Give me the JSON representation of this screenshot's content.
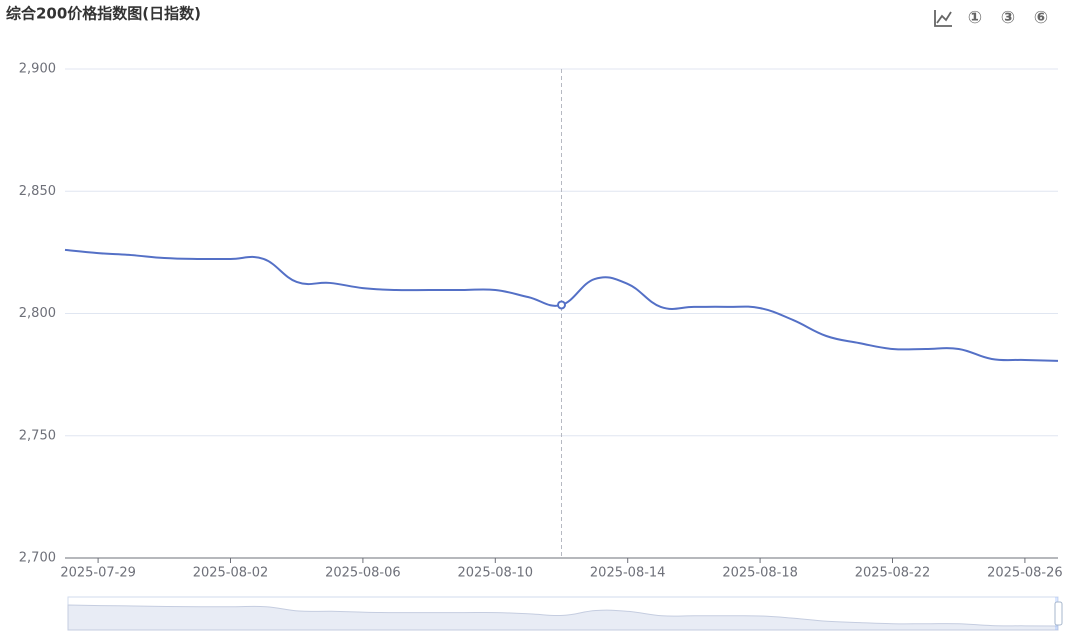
{
  "chart_data": {
    "type": "line",
    "title": "综合200价格指数图(日指数)",
    "toolbar": [
      "①",
      "③",
      "⑥"
    ],
    "categories": [
      null,
      "2025-07-29",
      null,
      null,
      null,
      "2025-08-02",
      null,
      null,
      null,
      "2025-08-06",
      null,
      null,
      null,
      "2025-08-10",
      null,
      null,
      null,
      "2025-08-14",
      null,
      null,
      null,
      "2025-08-18",
      null,
      null,
      null,
      "2025-08-22",
      null,
      null,
      null,
      "2025-08-26",
      null
    ],
    "series": [
      {
        "name": "综合200价格指数",
        "color": "#5470c6",
        "values": [
          2826.0,
          2824.7,
          2823.9,
          2822.7,
          2822.3,
          2822.3,
          2822.3,
          2812.9,
          2812.5,
          2810.4,
          2809.6,
          2809.6,
          2809.6,
          2809.6,
          2806.7,
          2803.5,
          2814.1,
          2812.1,
          2802.7,
          2802.7,
          2802.7,
          2802.2,
          2797.3,
          2790.8,
          2787.9,
          2785.5,
          2785.5,
          2785.5,
          2781.4,
          2781.0,
          2780.6
        ]
      }
    ],
    "ylim": [
      2700,
      2900
    ],
    "yticks": [
      {
        "value": 2700,
        "label": "2,700"
      },
      {
        "value": 2750,
        "label": "2,750"
      },
      {
        "value": 2800,
        "label": "2,800"
      },
      {
        "value": 2850,
        "label": "2,850"
      },
      {
        "value": 2900,
        "label": "2,900"
      }
    ],
    "grid": true,
    "smooth": true,
    "highlight_index": 15
  }
}
